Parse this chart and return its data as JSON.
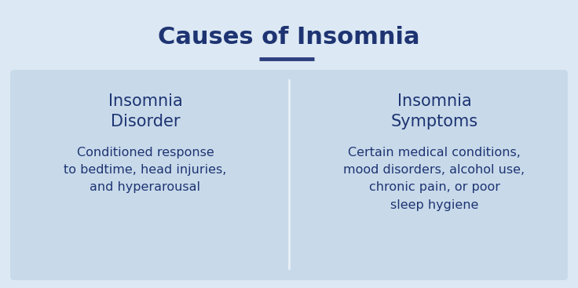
{
  "title": "Causes of Insomnia",
  "title_color": "#1e3472",
  "title_fontsize": 22,
  "title_fontweight": "bold",
  "bg_color": "#dce8f3",
  "box_color": "#c8daea",
  "divider_color": "#e8f0f8",
  "underline_color": "#2e3f7f",
  "left_heading": "Insomnia\nDisorder",
  "right_heading": "Insomnia\nSymptoms",
  "heading_color": "#1e3472",
  "heading_fontsize": 15,
  "heading_fontweight": "normal",
  "left_body": "Conditioned response\nto bedtime, head injuries,\nand hyperarousal",
  "right_body": "Certain medical conditions,\nmood disorders, alcohol use,\nchronic pain, or poor\nsleep hygiene",
  "body_color": "#1e3472",
  "body_fontsize": 11.5,
  "fig_width": 7.36,
  "fig_height": 3.67,
  "fig_dpi": 100
}
